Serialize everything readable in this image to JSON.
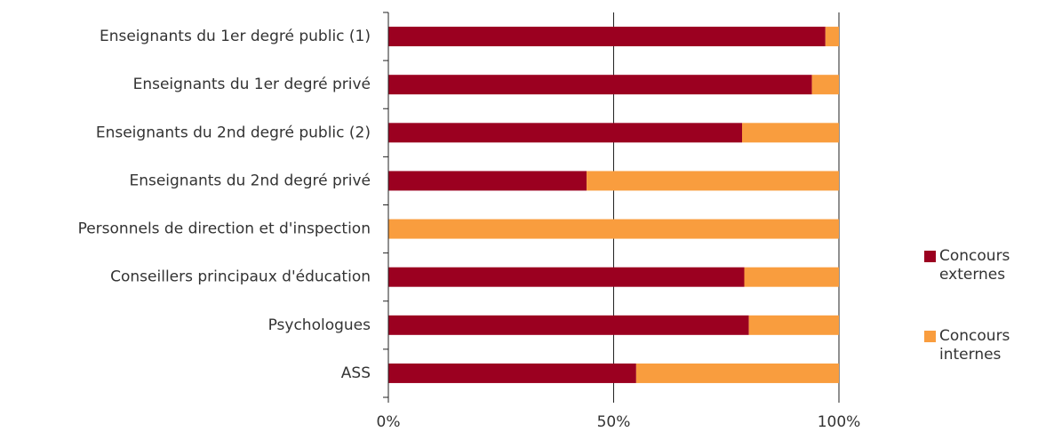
{
  "chart_data": {
    "type": "bar",
    "orientation": "horizontal",
    "stacked": true,
    "categories": [
      "Enseignants du 1er degré public (1)",
      "Enseignants du 1er degré privé",
      "Enseignants du 2nd degré public (2)",
      "Enseignants du 2nd degré privé",
      "Personnels de direction et d'inspection",
      "Conseillers principaux d'éducation",
      "Psychologues",
      "ASS"
    ],
    "series": [
      {
        "name": "Concours externes",
        "color": "#9b0020",
        "values": [
          97,
          94,
          78.5,
          44,
          0,
          79,
          80,
          55
        ]
      },
      {
        "name": "Concours internes",
        "color": "#f99d3e",
        "values": [
          3,
          6,
          21.5,
          56,
          100,
          21,
          20,
          45
        ]
      }
    ],
    "xlim": [
      0,
      100
    ],
    "xticks": [
      {
        "value": 0,
        "label": "0%"
      },
      {
        "value": 50,
        "label": "50%"
      },
      {
        "value": 100,
        "label": "100%"
      }
    ],
    "grid": true,
    "legend": "right"
  }
}
